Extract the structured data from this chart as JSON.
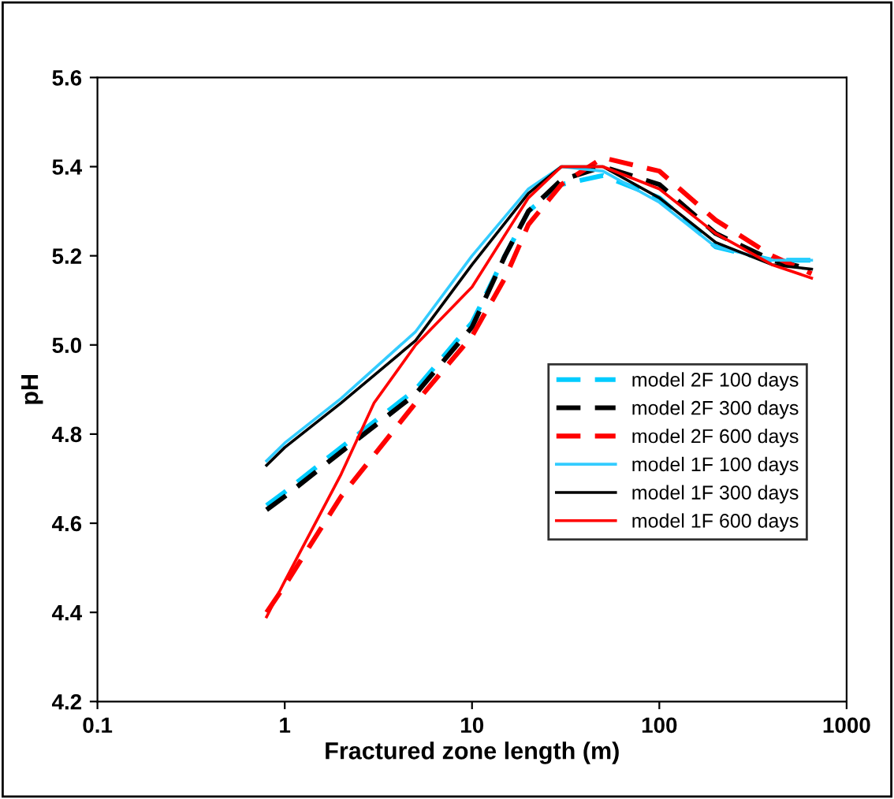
{
  "chart_data": {
    "type": "line",
    "xlabel": "Fractured zone length (m)",
    "ylabel": "pH",
    "log": "x",
    "xlim": [
      0.1,
      1000
    ],
    "xticks": [
      {
        "value": 0.1,
        "label": "0.1"
      },
      {
        "value": 1,
        "label": "1"
      },
      {
        "value": 10,
        "label": "10"
      },
      {
        "value": 100,
        "label": "100"
      },
      {
        "value": 1000,
        "label": "1000"
      }
    ],
    "ylim": [
      4.2,
      5.6
    ],
    "yticks": [
      {
        "value": 4.2,
        "label": "4.2"
      },
      {
        "value": 4.4,
        "label": "4.4"
      },
      {
        "value": 4.6,
        "label": "4.6"
      },
      {
        "value": 4.8,
        "label": "4.8"
      },
      {
        "value": 5.0,
        "label": "5.0"
      },
      {
        "value": 5.2,
        "label": "5.2"
      },
      {
        "value": 5.4,
        "label": "5.4"
      },
      {
        "value": 5.6,
        "label": "5.6"
      }
    ],
    "grid": false,
    "legend": "right",
    "marker": "none",
    "series": [
      {
        "name": "model 2F 100 days",
        "color": "#00ccff",
        "line_style": "dashed",
        "x": [
          0.8,
          1,
          2,
          5,
          10,
          15,
          20,
          30,
          50,
          100,
          200,
          400,
          650
        ],
        "values": [
          4.64,
          4.67,
          4.77,
          4.9,
          5.05,
          5.2,
          5.3,
          5.36,
          5.38,
          5.33,
          5.22,
          5.19,
          5.19
        ]
      },
      {
        "name": "model 2F 300 days",
        "color": "#000000",
        "line_style": "dashed",
        "x": [
          0.8,
          1,
          2,
          5,
          10,
          15,
          20,
          30,
          50,
          100,
          200,
          400,
          650
        ],
        "values": [
          4.63,
          4.66,
          4.76,
          4.89,
          5.04,
          5.2,
          5.3,
          5.37,
          5.4,
          5.36,
          5.25,
          5.19,
          5.17
        ]
      },
      {
        "name": "model 2F 600 days",
        "color": "#ff0000",
        "line_style": "dashed",
        "x": [
          0.8,
          1,
          2,
          5,
          10,
          15,
          20,
          30,
          50,
          100,
          200,
          400,
          650
        ],
        "values": [
          4.4,
          4.46,
          4.66,
          4.87,
          5.02,
          5.15,
          5.27,
          5.36,
          5.42,
          5.39,
          5.28,
          5.2,
          5.16
        ]
      },
      {
        "name": "model 1F 100 days",
        "color": "#33ccff",
        "line_style": "solid",
        "x": [
          0.8,
          1,
          2,
          5,
          10,
          20,
          30,
          50,
          100,
          200,
          400,
          650
        ],
        "values": [
          4.74,
          4.78,
          4.88,
          5.03,
          5.2,
          5.35,
          5.4,
          5.39,
          5.32,
          5.22,
          5.19,
          5.19
        ]
      },
      {
        "name": "model 1F 300 days",
        "color": "#000000",
        "line_style": "solid",
        "x": [
          0.8,
          1,
          2,
          5,
          10,
          20,
          30,
          50,
          100,
          200,
          400,
          650
        ],
        "values": [
          4.73,
          4.77,
          4.87,
          5.01,
          5.18,
          5.34,
          5.4,
          5.4,
          5.33,
          5.23,
          5.18,
          5.17
        ]
      },
      {
        "name": "model 1F 600 days",
        "color": "#ff0000",
        "line_style": "solid",
        "x": [
          0.8,
          1,
          2,
          3,
          5,
          10,
          20,
          30,
          50,
          100,
          200,
          400,
          650
        ],
        "values": [
          4.39,
          4.47,
          4.71,
          4.87,
          5.0,
          5.13,
          5.33,
          5.4,
          5.4,
          5.35,
          5.25,
          5.18,
          5.15
        ]
      }
    ]
  }
}
